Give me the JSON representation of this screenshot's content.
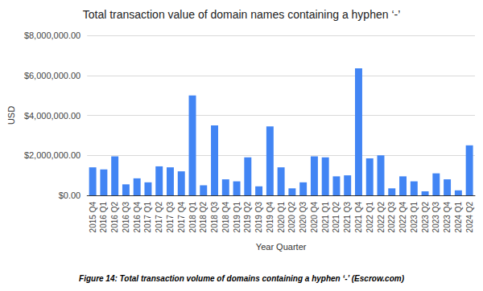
{
  "chart_data": {
    "type": "bar",
    "title": "Total transaction value of domain names containing a hyphen ‘-’",
    "caption": "Figure 14: Total transaction volume of domains containing a hyphen ‘-’ (Escrow.com)",
    "x_label": "Year Quarter",
    "y_label": "USD",
    "categories": [
      "2015 Q4",
      "2016 Q1",
      "2016 Q2",
      "2016 Q3",
      "2016 Q4",
      "2017 Q1",
      "2017 Q2",
      "2017 Q3",
      "2017 Q4",
      "2018 Q1",
      "2018 Q2",
      "2018 Q3",
      "2018 Q4",
      "2019 Q1",
      "2019 Q2",
      "2019 Q3",
      "2019 Q4",
      "2020 Q1",
      "2020 Q2",
      "2020 Q3",
      "2020 Q4",
      "2021 Q1",
      "2021 Q2",
      "2021 Q3",
      "2021 Q4",
      "2022 Q1",
      "2022 Q2",
      "2022 Q3",
      "2022 Q4",
      "2023 Q1",
      "2023 Q2",
      "2023 Q3",
      "2023 Q4",
      "2024 Q1",
      "2024 Q2"
    ],
    "values": [
      1400000,
      1300000,
      1950000,
      550000,
      850000,
      650000,
      1450000,
      1400000,
      1200000,
      5000000,
      500000,
      3500000,
      800000,
      700000,
      1900000,
      450000,
      3450000,
      1400000,
      350000,
      650000,
      1950000,
      1900000,
      950000,
      1000000,
      6350000,
      1850000,
      2000000,
      350000,
      950000,
      700000,
      200000,
      1100000,
      800000,
      250000,
      2500000
    ],
    "color": "#4285f4",
    "ylim": [
      0,
      8000000
    ],
    "yticks": [
      {
        "value": 0,
        "label": "$0.00"
      },
      {
        "value": 2000000,
        "label": "$2,000,000.00"
      },
      {
        "value": 4000000,
        "label": "$4,000,000.00"
      },
      {
        "value": 6000000,
        "label": "$6,000,000.00"
      },
      {
        "value": 8000000,
        "label": "$8,000,000.00"
      }
    ],
    "grid": true
  }
}
